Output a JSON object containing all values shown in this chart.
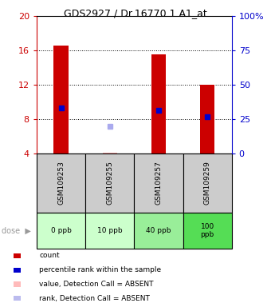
{
  "title": "GDS2927 / Dr.16770.1.A1_at",
  "samples": [
    "GSM109253",
    "GSM109255",
    "GSM109257",
    "GSM109259"
  ],
  "doses": [
    "0 ppb",
    "10 ppb",
    "40 ppb",
    "100\nppb"
  ],
  "bar_bottom": 4.0,
  "count_values": [
    16.6,
    4.1,
    15.6,
    12.0
  ],
  "count_detected": [
    true,
    false,
    true,
    true
  ],
  "percentile_values": [
    9.3,
    7.2,
    9.0,
    8.3
  ],
  "percentile_detected": [
    true,
    false,
    true,
    true
  ],
  "ylim_left": [
    4,
    20
  ],
  "ylim_right": [
    0,
    100
  ],
  "yticks_left": [
    4,
    8,
    12,
    16,
    20
  ],
  "yticks_right": [
    0,
    25,
    50,
    75,
    100
  ],
  "bar_color_present": "#cc0000",
  "bar_color_absent": "#ffaaaa",
  "dot_color_present": "#0000cc",
  "dot_color_absent": "#aaaaee",
  "dose_colors": [
    "#ccffcc",
    "#ccffcc",
    "#99ee99",
    "#55dd55"
  ],
  "legend_items": [
    {
      "color": "#cc0000",
      "label": "count"
    },
    {
      "color": "#0000cc",
      "label": "percentile rank within the sample"
    },
    {
      "color": "#ffbbbb",
      "label": "value, Detection Call = ABSENT"
    },
    {
      "color": "#bbbbee",
      "label": "rank, Detection Call = ABSENT"
    }
  ],
  "left_axis_color": "#cc0000",
  "right_axis_color": "#0000cc",
  "bar_width": 0.3
}
